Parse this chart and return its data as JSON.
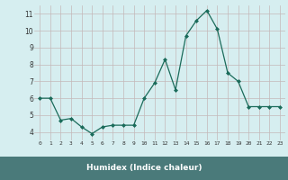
{
  "x": [
    0,
    1,
    2,
    3,
    4,
    5,
    6,
    7,
    8,
    9,
    10,
    11,
    12,
    13,
    14,
    15,
    16,
    17,
    18,
    19,
    20,
    21,
    22,
    23
  ],
  "y": [
    6.0,
    6.0,
    4.7,
    4.8,
    4.3,
    3.9,
    4.3,
    4.4,
    4.4,
    4.4,
    6.0,
    6.9,
    8.3,
    6.5,
    9.7,
    10.6,
    11.2,
    10.1,
    7.5,
    7.0,
    5.5,
    5.5,
    5.5,
    5.5
  ],
  "xlabel": "Humidex (Indice chaleur)",
  "ylim": [
    3.5,
    11.5
  ],
  "xlim": [
    -0.5,
    23.5
  ],
  "yticks": [
    4,
    5,
    6,
    7,
    8,
    9,
    10,
    11
  ],
  "xticks": [
    0,
    1,
    2,
    3,
    4,
    5,
    6,
    7,
    8,
    9,
    10,
    11,
    12,
    13,
    14,
    15,
    16,
    17,
    18,
    19,
    20,
    21,
    22,
    23
  ],
  "xtick_labels": [
    "0",
    "1",
    "2",
    "3",
    "4",
    "5",
    "6",
    "7",
    "8",
    "9",
    "10",
    "11",
    "12",
    "13",
    "14",
    "15",
    "16",
    "17",
    "18",
    "19",
    "20",
    "21",
    "22",
    "23"
  ],
  "line_color": "#1a6b5a",
  "marker": "D",
  "marker_size": 2.0,
  "bg_color": "#d6eef0",
  "grid_color": "#c4b8b8",
  "axis_bg_color": "#d6eef0",
  "bottom_bar_color": "#4a7a7a",
  "xlabel_color": "#ffffff",
  "tick_color": "#333333"
}
